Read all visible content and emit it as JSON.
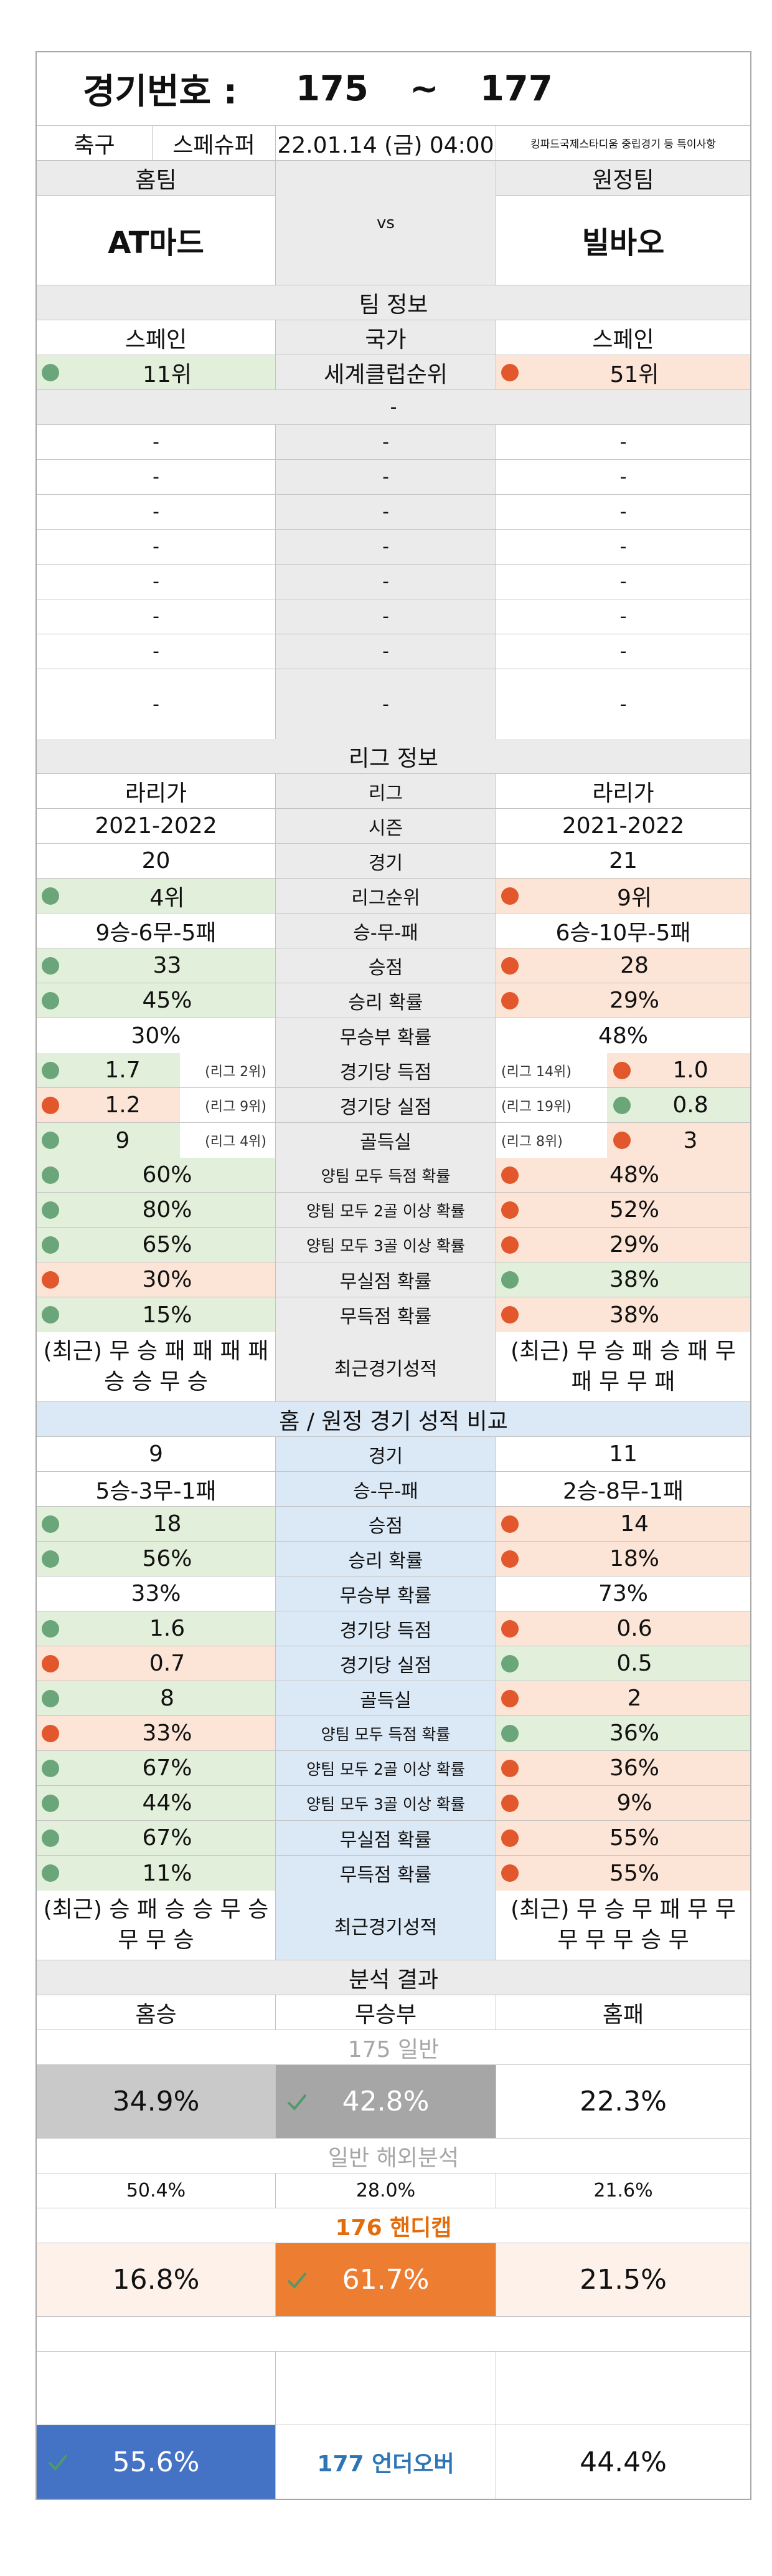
{
  "header": {
    "label": "경기번호 :",
    "from": "175",
    "tilde": "~",
    "to": "177"
  },
  "match": {
    "sport": "축구",
    "league": "스페슈퍼",
    "datetime": "22.01.14 (금) 04:00",
    "venue": "킹파드국제스타디움 중립경기 등 특이사항"
  },
  "teams": {
    "home_label": "홈팀",
    "away_label": "원정팀",
    "home": "AT마드",
    "vs": "vs",
    "away": "빌바오"
  },
  "team_info": {
    "section": "팀 정보",
    "country_label": "국가",
    "home_country": "스페인",
    "away_country": "스페인",
    "rank_label": "세계클럽순위",
    "home_rank": "11위",
    "away_rank": "51위",
    "dash": "-"
  },
  "league_info": {
    "section": "리그 정보",
    "rows": [
      {
        "label": "리그",
        "home": "라리가",
        "away": "라리가"
      },
      {
        "label": "시즌",
        "home": "2021-2022",
        "away": "2021-2022"
      },
      {
        "label": "경기",
        "home": "20",
        "away": "21"
      },
      {
        "label": "리그순위",
        "home": "4위",
        "away": "9위",
        "hc": "green",
        "ac": "orange",
        "hd": "g",
        "ad": "o"
      },
      {
        "label": "승-무-패",
        "home": "9승-6무-5패",
        "away": "6승-10무-5패"
      },
      {
        "label": "승점",
        "home": "33",
        "away": "28",
        "hc": "green",
        "ac": "orange",
        "hd": "g",
        "ad": "o"
      },
      {
        "label": "승리 확률",
        "home": "45%",
        "away": "29%",
        "hc": "green",
        "ac": "orange",
        "hd": "g",
        "ad": "o"
      },
      {
        "label": "무승부 확률",
        "home": "30%",
        "away": "48%"
      }
    ],
    "rank_rows": [
      {
        "label": "경기당 득점",
        "home": "1.7",
        "home_rank": "(리그 2위)",
        "away": "1.0",
        "away_rank": "(리그 14위)",
        "hc": "green",
        "ac": "orange",
        "hd": "g",
        "ad": "o"
      },
      {
        "label": "경기당 실점",
        "home": "1.2",
        "home_rank": "(리그 9위)",
        "away": "0.8",
        "away_rank": "(리그 19위)",
        "hc": "orange",
        "ac": "green",
        "hd": "o",
        "ad": "g"
      },
      {
        "label": "골득실",
        "home": "9",
        "home_rank": "(리그 4위)",
        "away": "3",
        "away_rank": "(리그 8위)",
        "hc": "green",
        "ac": "orange",
        "hd": "g",
        "ad": "o"
      }
    ],
    "prob_rows": [
      {
        "label": "양팀 모두 득점 확률",
        "home": "60%",
        "away": "48%",
        "hc": "green",
        "ac": "orange",
        "hd": "g",
        "ad": "o"
      },
      {
        "label": "양팀 모두 2골 이상 확률",
        "home": "80%",
        "away": "52%",
        "hc": "green",
        "ac": "orange",
        "hd": "g",
        "ad": "o"
      },
      {
        "label": "양팀 모두 3골 이상 확률",
        "home": "65%",
        "away": "29%",
        "hc": "green",
        "ac": "orange",
        "hd": "g",
        "ad": "o"
      },
      {
        "label": "무실점 확률",
        "home": "30%",
        "away": "38%",
        "hc": "orange",
        "ac": "green",
        "hd": "o",
        "ad": "g"
      },
      {
        "label": "무득점 확률",
        "home": "15%",
        "away": "38%",
        "hc": "green",
        "ac": "orange",
        "hd": "g",
        "ad": "o"
      }
    ],
    "recent_label": "최근경기성적",
    "home_recent": "(최근) 무 승 패 패 패 패 승 승 무 승",
    "away_recent": "(최근) 무 승 패 승 패 무 패 무 무 패"
  },
  "homeaway": {
    "section": "홈 / 원정 경기 성적 비교",
    "rows": [
      {
        "label": "경기",
        "home": "9",
        "away": "11"
      },
      {
        "label": "승-무-패",
        "home": "5승-3무-1패",
        "away": "2승-8무-1패"
      },
      {
        "label": "승점",
        "home": "18",
        "away": "14",
        "hc": "green",
        "ac": "orange",
        "hd": "g",
        "ad": "o"
      },
      {
        "label": "승리 확률",
        "home": "56%",
        "away": "18%",
        "hc": "green",
        "ac": "orange",
        "hd": "g",
        "ad": "o"
      },
      {
        "label": "무승부 확률",
        "home": "33%",
        "away": "73%"
      },
      {
        "label": "경기당 득점",
        "home": "1.6",
        "away": "0.6",
        "hc": "green",
        "ac": "orange",
        "hd": "g",
        "ad": "o"
      },
      {
        "label": "경기당 실점",
        "home": "0.7",
        "away": "0.5",
        "hc": "orange",
        "ac": "green",
        "hd": "o",
        "ad": "g"
      },
      {
        "label": "골득실",
        "home": "8",
        "away": "2",
        "hc": "green",
        "ac": "orange",
        "hd": "g",
        "ad": "o"
      },
      {
        "label": "양팀 모두 득점 확률",
        "home": "33%",
        "away": "36%",
        "hc": "orange",
        "ac": "green",
        "hd": "o",
        "ad": "g"
      },
      {
        "label": "양팀 모두 2골 이상 확률",
        "home": "67%",
        "away": "36%",
        "hc": "green",
        "ac": "orange",
        "hd": "g",
        "ad": "o"
      },
      {
        "label": "양팀 모두 3골 이상 확률",
        "home": "44%",
        "away": "9%",
        "hc": "green",
        "ac": "orange",
        "hd": "g",
        "ad": "o"
      },
      {
        "label": "무실점 확률",
        "home": "67%",
        "away": "55%",
        "hc": "green",
        "ac": "orange",
        "hd": "g",
        "ad": "o"
      },
      {
        "label": "무득점 확률",
        "home": "11%",
        "away": "55%",
        "hc": "green",
        "ac": "orange",
        "hd": "g",
        "ad": "o"
      }
    ],
    "recent_label": "최근경기성적",
    "home_recent": "(최근) 승 패 승 승 무 승 무 무 승",
    "away_recent": "(최근) 무 승 무 패 무 무 무 무 무 승 무"
  },
  "analysis": {
    "section": "분석 결과",
    "win_label": "홈승",
    "draw_label": "무승부",
    "lose_label": "홈패",
    "general_title": "175 일반",
    "general": {
      "win": "34.9%",
      "draw": "42.8%",
      "lose": "22.3%"
    },
    "overseas_title": "일반 해외분석",
    "overseas": {
      "win": "50.4%",
      "draw": "28.0%",
      "lose": "21.6%"
    },
    "handicap_title": "176 핸디캡",
    "handicap": {
      "win": "16.8%",
      "draw": "61.7%",
      "lose": "21.5%"
    },
    "underover": {
      "under": "55.6%",
      "title": "177 언더오버",
      "over": "44.4%"
    }
  },
  "colors": {
    "green": "#e2efda",
    "orange": "#fce4d6",
    "gray_win": "#c9c9c9",
    "gray_draw": "#a6a6a6",
    "handicap": "#ed7d31",
    "underover": "#4472c4",
    "handicap_text": "#e46c0a",
    "underover_text": "#2e75b6",
    "section_gray": "#ebebeb",
    "section_blue": "#dbe8f5"
  }
}
